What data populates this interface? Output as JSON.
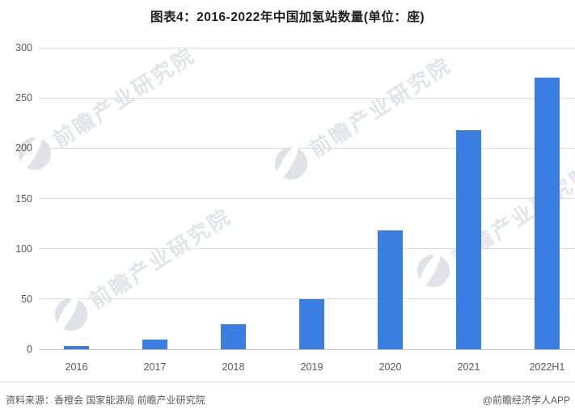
{
  "title": "图表4：2016-2022年中国加氢站数量(单位：座)",
  "chart_data": {
    "type": "bar",
    "title": "图表4：2016-2022年中国加氢站数量(单位：座)",
    "unit_label": "座",
    "categories": [
      "2016",
      "2017",
      "2018",
      "2019",
      "2020",
      "2021",
      "2022H1"
    ],
    "values": [
      3,
      10,
      25,
      50,
      118,
      218,
      270
    ],
    "xlabel": "",
    "ylabel": "",
    "ylim": [
      0,
      300
    ],
    "yticks": [
      0,
      50,
      100,
      150,
      200,
      250,
      300
    ],
    "grid": true,
    "legend": false,
    "bar_color": "#3a7ee2"
  },
  "watermark": {
    "text": "前瞻产业研究院"
  },
  "footer": {
    "source": "资料来源：香橙会 国家能源局 前瞻产业研究院",
    "credit": "@前瞻经济学人APP"
  },
  "colors": {
    "bar": "#3a7ee2",
    "gridline": "#dcdcdc",
    "axisline": "#c4c4c4",
    "tick_text": "#595959",
    "title_text": "#1f1f1f",
    "watermark": "#e1e4e9",
    "divider": "#d9d9d9",
    "background": "#ffffff"
  }
}
